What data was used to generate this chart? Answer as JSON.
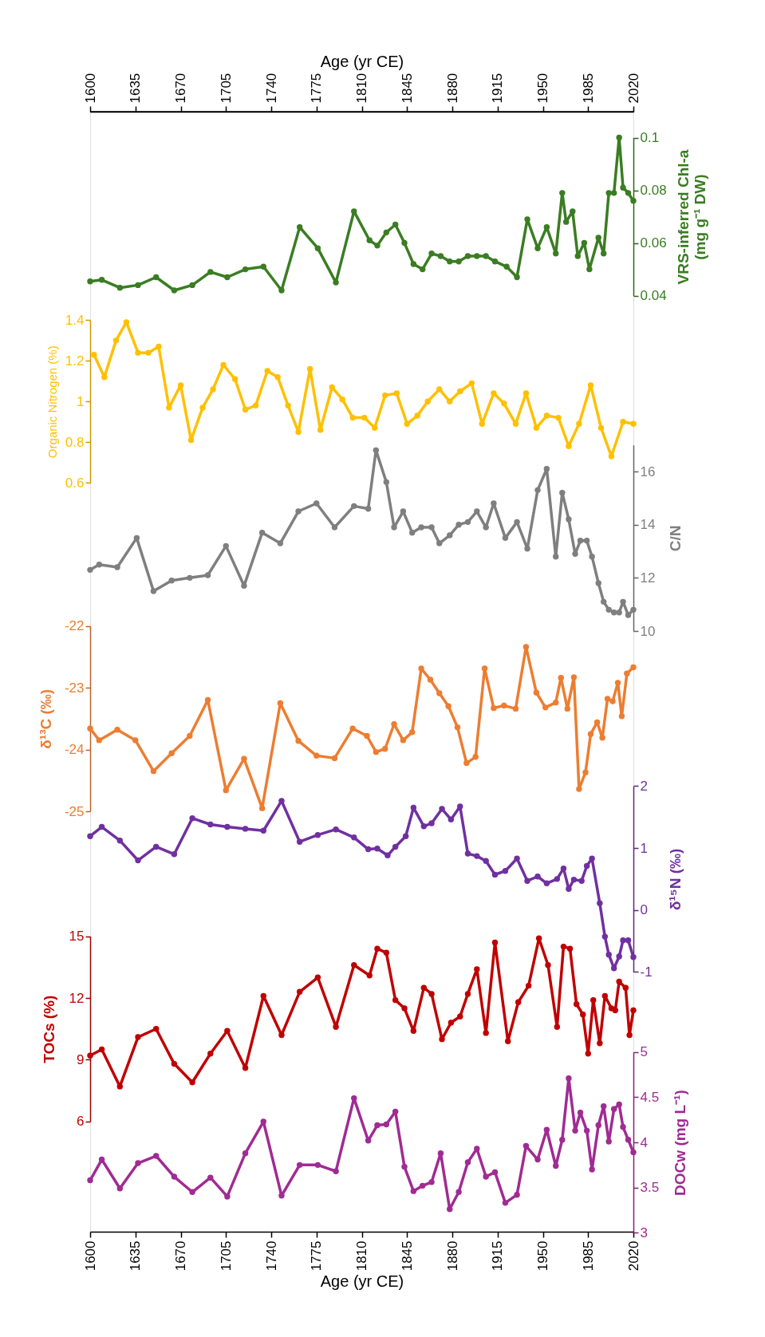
{
  "chart_data": [
    {
      "type": "line",
      "marker": "circle",
      "line_style": "solid",
      "xlim": [
        1600,
        2020
      ],
      "tick_labels": "y",
      "x2label": "Age (yr CE)",
      "x2lim": [
        1600,
        2020
      ],
      "x2ticks": [
        1600,
        1635,
        1670,
        1705,
        1740,
        1775,
        1810,
        1845,
        1880,
        1915,
        1950,
        1985,
        2020
      ],
      "ylabel": "VRS-inferred Chl-a\n(mg g⁻¹ DW)",
      "ylim": [
        0.04,
        0.1
      ],
      "yticks": [
        0.04,
        0.06,
        0.08,
        0.1
      ],
      "series": [
        {
          "color": "#3a7d22",
          "x": [
            1600,
            1609,
            1623,
            1637,
            1651,
            1665,
            1679,
            1693,
            1706,
            1720,
            1734,
            1748,
            1762,
            1776,
            1790,
            1804,
            1816,
            1822,
            1829,
            1836,
            1843,
            1850,
            1857,
            1864,
            1871,
            1878,
            1885,
            1892,
            1899,
            1906,
            1913,
            1922,
            1930,
            1938,
            1946,
            1953,
            1960,
            1965,
            1968,
            1973,
            1977,
            1982,
            1986,
            1993,
            1997,
            2001,
            2005,
            2009,
            2012,
            2016,
            2020
          ],
          "values": [
            0.0454,
            0.046,
            0.043,
            0.044,
            0.047,
            0.042,
            0.044,
            0.049,
            0.047,
            0.05,
            0.051,
            0.042,
            0.066,
            0.058,
            0.045,
            0.072,
            0.061,
            0.059,
            0.064,
            0.067,
            0.06,
            0.052,
            0.05,
            0.056,
            0.055,
            0.053,
            0.053,
            0.055,
            0.055,
            0.055,
            0.053,
            0.051,
            0.047,
            0.069,
            0.058,
            0.066,
            0.056,
            0.079,
            0.068,
            0.072,
            0.055,
            0.06,
            0.05,
            0.062,
            0.056,
            0.079,
            0.079,
            0.1,
            0.081,
            0.079,
            0.076
          ]
        }
      ]
    },
    {
      "type": "line",
      "marker": "circle",
      "line_style": "solid",
      "xlim": [
        1600,
        2020
      ],
      "tick_labels": "y",
      "ylabel": "Organic Nitrogen (%)",
      "ylim": [
        0.6,
        1.4
      ],
      "yticks": [
        0.6,
        0.8,
        1,
        1.2,
        1.4
      ],
      "series": [
        {
          "color": "#ffc000",
          "x": [
            1603,
            1611,
            1620,
            1628,
            1637,
            1645,
            1653,
            1661,
            1670,
            1678,
            1687,
            1695,
            1703,
            1712,
            1720,
            1728,
            1737,
            1745,
            1753,
            1761,
            1770,
            1778,
            1787,
            1795,
            1803,
            1812,
            1820,
            1828,
            1837,
            1845,
            1853,
            1861,
            1870,
            1878,
            1886,
            1895,
            1903,
            1912,
            1920,
            1929,
            1937,
            1945,
            1953,
            1962,
            1970,
            1978,
            1987,
            1995,
            2003,
            2012,
            2020
          ],
          "values": [
            1.23,
            1.12,
            1.3,
            1.39,
            1.24,
            1.24,
            1.27,
            0.97,
            1.08,
            0.81,
            0.97,
            1.06,
            1.18,
            1.11,
            0.96,
            0.98,
            1.15,
            1.12,
            0.98,
            0.85,
            1.16,
            0.86,
            1.07,
            1.01,
            0.92,
            0.92,
            0.87,
            1.03,
            1.04,
            0.89,
            0.93,
            1.0,
            1.06,
            1.0,
            1.05,
            1.09,
            0.89,
            1.04,
            0.99,
            0.89,
            1.04,
            0.87,
            0.93,
            0.92,
            0.78,
            0.89,
            1.08,
            0.87,
            0.73,
            0.9,
            0.89
          ]
        }
      ]
    },
    {
      "type": "line",
      "marker": "circle",
      "line_style": "solid",
      "xlim": [
        1600,
        2020
      ],
      "tick_labels": "y",
      "ylabel": "C/N",
      "ylim": [
        10,
        17
      ],
      "yticks": [
        10,
        12,
        14,
        16
      ],
      "series": [
        {
          "color": "#7f7f7f",
          "x": [
            1600,
            1607,
            1621,
            1636,
            1649,
            1663,
            1677,
            1691,
            1705,
            1719,
            1733,
            1747,
            1761,
            1775,
            1789,
            1804,
            1815,
            1821,
            1829,
            1835,
            1842,
            1849,
            1856,
            1864,
            1870,
            1878,
            1885,
            1892,
            1899,
            1906,
            1912,
            1921,
            1930,
            1938,
            1946,
            1953,
            1960,
            1965,
            1970,
            1975,
            1979,
            1984,
            1988,
            1993,
            1997,
            2001,
            2005,
            2009,
            2012,
            2016,
            2020
          ],
          "values": [
            12.3,
            12.5,
            12.4,
            13.5,
            11.5,
            11.9,
            12.0,
            12.1,
            13.2,
            11.7,
            13.7,
            13.3,
            14.5,
            14.8,
            13.9,
            14.7,
            14.6,
            16.8,
            15.6,
            13.9,
            14.5,
            13.7,
            13.9,
            13.9,
            13.3,
            13.6,
            14.0,
            14.1,
            14.5,
            13.9,
            14.8,
            13.5,
            14.1,
            13.1,
            15.3,
            16.1,
            12.8,
            15.2,
            14.2,
            12.9,
            13.4,
            13.4,
            12.8,
            11.8,
            11.1,
            10.8,
            10.7,
            10.7,
            11.1,
            10.6,
            10.8
          ]
        }
      ]
    },
    {
      "type": "line",
      "marker": "circle",
      "line_style": "solid",
      "xlim": [
        1600,
        2020
      ],
      "tick_labels": "y",
      "ylabel": "δ¹³C (‰)",
      "ylim": [
        -25,
        -22
      ],
      "yticks": [
        -25,
        -24,
        -23,
        -22
      ],
      "series": [
        {
          "color": "#ed7d31",
          "x": [
            1600,
            1607,
            1621,
            1635,
            1649,
            1663,
            1677,
            1691,
            1705,
            1719,
            1733,
            1747,
            1761,
            1775,
            1789,
            1803,
            1814,
            1821,
            1828,
            1835,
            1842,
            1849,
            1856,
            1863,
            1870,
            1877,
            1884,
            1891,
            1898,
            1905,
            1912,
            1920,
            1929,
            1937,
            1945,
            1952,
            1960,
            1964,
            1969,
            1974,
            1978,
            1983,
            1987,
            1992,
            1996,
            2000,
            2004,
            2008,
            2011,
            2015,
            2020
          ],
          "values": [
            -23.66,
            -23.85,
            -23.68,
            -23.85,
            -24.35,
            -24.06,
            -23.78,
            -23.2,
            -24.66,
            -24.15,
            -24.95,
            -23.25,
            -23.86,
            -24.1,
            -24.14,
            -23.66,
            -23.78,
            -24.04,
            -23.99,
            -23.59,
            -23.85,
            -23.72,
            -22.69,
            -22.87,
            -23.09,
            -23.3,
            -23.64,
            -24.22,
            -24.12,
            -22.69,
            -23.33,
            -23.29,
            -23.34,
            -22.34,
            -23.08,
            -23.32,
            -23.24,
            -22.84,
            -23.34,
            -22.83,
            -24.64,
            -24.37,
            -23.75,
            -23.56,
            -23.81,
            -23.18,
            -23.22,
            -22.92,
            -23.46,
            -22.77,
            -22.67
          ]
        }
      ]
    },
    {
      "type": "line",
      "marker": "circle",
      "line_style": "solid",
      "xlim": [
        1600,
        2020
      ],
      "tick_labels": "y",
      "ylabel": "δ¹⁵N (‰)",
      "ylim": [
        -1,
        2
      ],
      "yticks": [
        -1,
        0,
        1,
        2
      ],
      "series": [
        {
          "color": "#7030a0",
          "x": [
            1600,
            1609,
            1623,
            1637,
            1651,
            1665,
            1679,
            1693,
            1706,
            1720,
            1734,
            1748,
            1762,
            1776,
            1790,
            1804,
            1815,
            1822,
            1830,
            1836,
            1844,
            1850,
            1858,
            1864,
            1872,
            1879,
            1886,
            1892,
            1899,
            1906,
            1913,
            1921,
            1930,
            1938,
            1946,
            1953,
            1961,
            1966,
            1970,
            1974,
            1980,
            1984,
            1988,
            1994,
            1998,
            2001,
            2005,
            2009,
            2012,
            2016,
            2020
          ],
          "values": [
            1.19,
            1.34,
            1.12,
            0.8,
            1.02,
            0.9,
            1.48,
            1.38,
            1.34,
            1.31,
            1.28,
            1.76,
            1.1,
            1.21,
            1.3,
            1.17,
            0.98,
            0.99,
            0.88,
            1.02,
            1.19,
            1.65,
            1.35,
            1.4,
            1.63,
            1.46,
            1.67,
            0.91,
            0.87,
            0.79,
            0.57,
            0.63,
            0.83,
            0.47,
            0.54,
            0.43,
            0.5,
            0.67,
            0.34,
            0.49,
            0.47,
            0.71,
            0.83,
            0.11,
            -0.43,
            -0.72,
            -0.94,
            -0.75,
            -0.49,
            -0.49,
            -0.76
          ]
        }
      ]
    },
    {
      "type": "line",
      "marker": "circle",
      "line_style": "solid",
      "xlim": [
        1600,
        2020
      ],
      "tick_labels": "y",
      "ylabel": "TOCs (%)",
      "ylim": [
        6,
        15
      ],
      "yticks": [
        6,
        9,
        12,
        15
      ],
      "series": [
        {
          "color": "#c00000",
          "x": [
            1600,
            1609,
            1623,
            1637,
            1651,
            1665,
            1679,
            1693,
            1706,
            1720,
            1734,
            1748,
            1762,
            1776,
            1790,
            1804,
            1816,
            1822,
            1829,
            1836,
            1843,
            1850,
            1858,
            1864,
            1872,
            1879,
            1886,
            1892,
            1899,
            1906,
            1913,
            1923,
            1931,
            1939,
            1947,
            1954,
            1961,
            1966,
            1971,
            1976,
            1981,
            1985,
            1989,
            1994,
            1998,
            2003,
            2006,
            2009,
            2014,
            2017,
            2020
          ],
          "values": [
            9.2,
            9.5,
            7.7,
            10.1,
            10.5,
            8.8,
            7.9,
            9.3,
            10.4,
            8.6,
            12.1,
            10.2,
            12.3,
            13.0,
            10.6,
            13.6,
            13.1,
            14.4,
            14.2,
            11.9,
            11.5,
            10.4,
            12.5,
            12.2,
            10.0,
            10.8,
            11.1,
            12.2,
            13.4,
            10.3,
            14.7,
            9.9,
            11.8,
            12.6,
            14.9,
            13.6,
            10.6,
            14.5,
            14.4,
            11.7,
            11.2,
            9.3,
            11.9,
            9.8,
            12.1,
            11.5,
            11.4,
            12.8,
            12.5,
            10.2,
            11.4
          ]
        }
      ]
    },
    {
      "type": "line",
      "marker": "circle",
      "line_style": "solid",
      "xlabel": "Age (yr CE)",
      "xlim": [
        1600,
        2020
      ],
      "xticks": [
        1600,
        1635,
        1670,
        1705,
        1740,
        1775,
        1810,
        1845,
        1880,
        1915,
        1950,
        1985,
        2020
      ],
      "ylabel": "DOCw (mg L⁻¹)",
      "ylim": [
        3,
        5
      ],
      "yticks": [
        3,
        3.5,
        4,
        4.5,
        5
      ],
      "series": [
        {
          "color": "#a02b93",
          "x": [
            1600,
            1609,
            1623,
            1637,
            1651,
            1665,
            1679,
            1693,
            1706,
            1720,
            1734,
            1748,
            1762,
            1776,
            1790,
            1804,
            1815,
            1822,
            1829,
            1836,
            1843,
            1850,
            1857,
            1864,
            1871,
            1878,
            1885,
            1892,
            1899,
            1906,
            1913,
            1921,
            1930,
            1937,
            1946,
            1953,
            1960,
            1965,
            1970,
            1975,
            1979,
            1984,
            1988,
            1993,
            1997,
            2001,
            2005,
            2009,
            2012,
            2016,
            2020
          ],
          "values": [
            3.58,
            3.81,
            3.49,
            3.77,
            3.85,
            3.62,
            3.45,
            3.61,
            3.4,
            3.88,
            4.23,
            3.41,
            3.75,
            3.75,
            3.68,
            4.49,
            4.02,
            4.19,
            4.2,
            4.34,
            3.73,
            3.46,
            3.52,
            3.56,
            3.88,
            3.26,
            3.45,
            3.78,
            3.93,
            3.62,
            3.67,
            3.33,
            3.42,
            3.96,
            3.81,
            4.14,
            3.74,
            4.03,
            4.71,
            4.13,
            4.33,
            4.13,
            3.7,
            4.19,
            4.4,
            4.01,
            4.37,
            4.42,
            4.17,
            4.03,
            3.89
          ]
        }
      ]
    }
  ]
}
